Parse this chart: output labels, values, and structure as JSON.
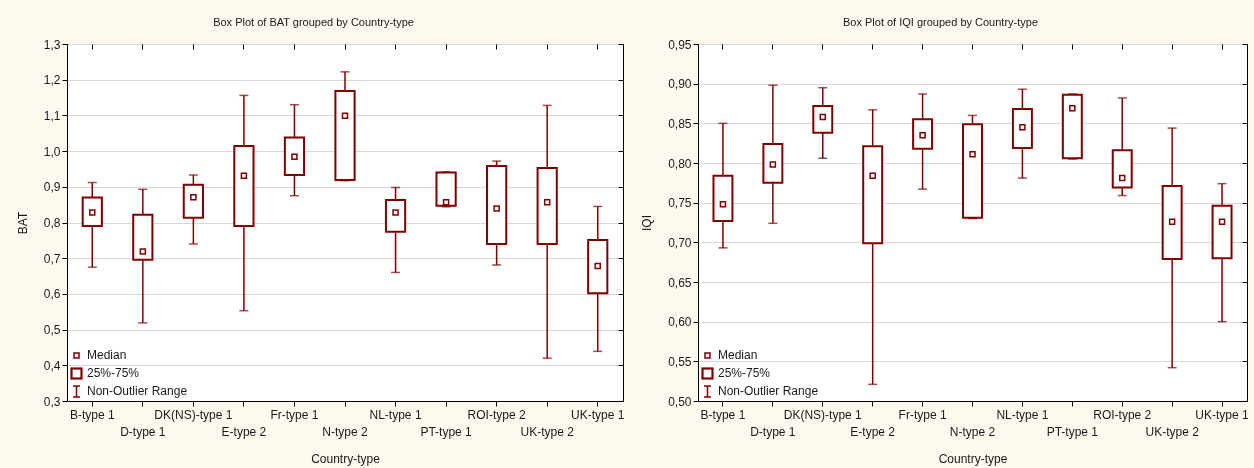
{
  "chart_data": [
    {
      "type": "box",
      "title": "Box Plot of BAT grouped by Country-type",
      "xlabel": "Country-type",
      "ylabel": "BAT",
      "categories": [
        "B-type 1",
        "D-type 1",
        "DK(NS)-type 1",
        "E-type 2",
        "Fr-type 1",
        "N-type 2",
        "NL-type 1",
        "PT-type 1",
        "ROI-type 2",
        "UK-type 2",
        "UK-type 1"
      ],
      "boxes": [
        {
          "low": 0.675,
          "q1": 0.79,
          "median": 0.828,
          "q3": 0.87,
          "high": 0.912
        },
        {
          "low": 0.519,
          "q1": 0.696,
          "median": 0.719,
          "q3": 0.822,
          "high": 0.893
        },
        {
          "low": 0.74,
          "q1": 0.813,
          "median": 0.871,
          "q3": 0.906,
          "high": 0.933
        },
        {
          "low": 0.553,
          "q1": 0.79,
          "median": 0.931,
          "q3": 1.014,
          "high": 1.156
        },
        {
          "low": 0.875,
          "q1": 0.933,
          "median": 0.984,
          "q3": 1.038,
          "high": 1.13
        },
        {
          "low": 0.917,
          "q1": 0.919,
          "median": 1.099,
          "q3": 1.168,
          "high": 1.222
        },
        {
          "low": 0.66,
          "q1": 0.774,
          "median": 0.828,
          "q3": 0.863,
          "high": 0.898
        },
        {
          "low": 0.844,
          "q1": 0.847,
          "median": 0.857,
          "q3": 0.94,
          "high": 0.942
        },
        {
          "low": 0.681,
          "q1": 0.74,
          "median": 0.839,
          "q3": 0.958,
          "high": 0.972
        },
        {
          "low": 0.42,
          "q1": 0.74,
          "median": 0.857,
          "q3": 0.953,
          "high": 1.128
        },
        {
          "low": 0.439,
          "q1": 0.602,
          "median": 0.678,
          "q3": 0.751,
          "high": 0.845
        }
      ],
      "color": "#800000",
      "ylim": [
        0.3,
        1.3
      ],
      "yticks": [
        {
          "value": 0.3,
          "label": "0,3"
        },
        {
          "value": 0.4,
          "label": "0,4"
        },
        {
          "value": 0.5,
          "label": "0,5"
        },
        {
          "value": 0.6,
          "label": "0,6"
        },
        {
          "value": 0.7,
          "label": "0,7"
        },
        {
          "value": 0.8,
          "label": "0,8"
        },
        {
          "value": 0.9,
          "label": "0,9"
        },
        {
          "value": 1.0,
          "label": "1,0"
        },
        {
          "value": 1.1,
          "label": "1,1"
        },
        {
          "value": 1.2,
          "label": "1,2"
        },
        {
          "value": 1.3,
          "label": "1,3"
        }
      ],
      "grid": "y",
      "annotations": [
        "Median",
        "25%-75%",
        "Non-Outlier Range"
      ]
    },
    {
      "type": "box",
      "title": "Box Plot of IQI grouped by Country-type",
      "xlabel": "Country-type",
      "ylabel": "IQI",
      "categories": [
        "B-type 1",
        "D-type 1",
        "DK(NS)-type 1",
        "E-type 2",
        "Fr-type 1",
        "N-type 2",
        "NL-type 1",
        "PT-type 1",
        "ROI-type 2",
        "UK-type 2",
        "UK-type 1"
      ],
      "boxes": [
        {
          "low": 0.693,
          "q1": 0.727,
          "median": 0.748,
          "q3": 0.784,
          "high": 0.85
        },
        {
          "low": 0.724,
          "q1": 0.775,
          "median": 0.798,
          "q3": 0.824,
          "high": 0.898
        },
        {
          "low": 0.806,
          "q1": 0.838,
          "median": 0.858,
          "q3": 0.872,
          "high": 0.895
        },
        {
          "low": 0.521,
          "q1": 0.699,
          "median": 0.784,
          "q3": 0.821,
          "high": 0.867
        },
        {
          "low": 0.767,
          "q1": 0.818,
          "median": 0.835,
          "q3": 0.855,
          "high": 0.887
        },
        {
          "low": 0.73,
          "q1": 0.731,
          "median": 0.811,
          "q3": 0.849,
          "high": 0.86
        },
        {
          "low": 0.781,
          "q1": 0.819,
          "median": 0.845,
          "q3": 0.868,
          "high": 0.893
        },
        {
          "low": 0.805,
          "q1": 0.806,
          "median": 0.869,
          "q3": 0.886,
          "high": 0.887
        },
        {
          "low": 0.759,
          "q1": 0.769,
          "median": 0.781,
          "q3": 0.816,
          "high": 0.882
        },
        {
          "low": 0.542,
          "q1": 0.679,
          "median": 0.726,
          "q3": 0.771,
          "high": 0.844
        },
        {
          "low": 0.6,
          "q1": 0.68,
          "median": 0.726,
          "q3": 0.746,
          "high": 0.774
        }
      ],
      "color": "#800000",
      "ylim": [
        0.5,
        0.95
      ],
      "yticks": [
        {
          "value": 0.5,
          "label": "0,50"
        },
        {
          "value": 0.55,
          "label": "0,55"
        },
        {
          "value": 0.6,
          "label": "0,60"
        },
        {
          "value": 0.65,
          "label": "0,65"
        },
        {
          "value": 0.7,
          "label": "0,70"
        },
        {
          "value": 0.75,
          "label": "0,75"
        },
        {
          "value": 0.8,
          "label": "0,80"
        },
        {
          "value": 0.85,
          "label": "0,85"
        },
        {
          "value": 0.9,
          "label": "0,90"
        },
        {
          "value": 0.95,
          "label": "0,95"
        }
      ],
      "grid": "y",
      "annotations": [
        "Median",
        "25%-75%",
        "Non-Outlier Range"
      ]
    }
  ]
}
